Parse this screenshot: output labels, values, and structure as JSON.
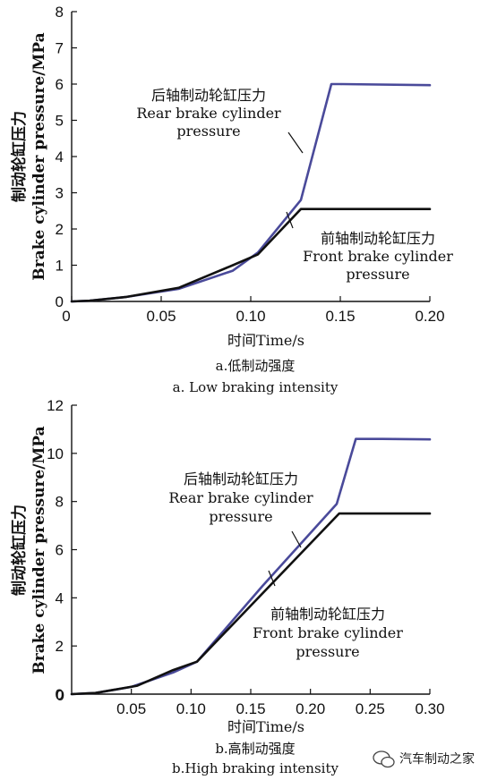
{
  "chart_data": [
    {
      "type": "line",
      "title": "",
      "xlabel": "时间Time/s",
      "ylabel_line1": "制动轮缸压力",
      "ylabel_line2": "Brake cylinder pressure/MPa",
      "xlim": [
        0,
        0.2
      ],
      "ylim": [
        0,
        8
      ],
      "xticks": [
        0,
        0.05,
        0.1,
        0.15,
        0.2
      ],
      "xtick_labels": [
        "0",
        "0.05",
        "0.10",
        "0.15",
        "0.20"
      ],
      "yticks": [
        0,
        1,
        2,
        3,
        4,
        5,
        6,
        7,
        8
      ],
      "ytick_labels": [
        "0",
        "1",
        "2",
        "3",
        "4",
        "5",
        "6",
        "7",
        "8"
      ],
      "caption_cn": "a.低制动强度",
      "caption_en": "a. Low braking intensity",
      "grid": false,
      "series": [
        {
          "name": "后轴制动轮缸压力 Rear brake cylinder pressure",
          "color": "#4a4a9a",
          "x": [
            0,
            0.01,
            0.03,
            0.06,
            0.09,
            0.104,
            0.128,
            0.145,
            0.15,
            0.2
          ],
          "y": [
            0,
            0.02,
            0.12,
            0.35,
            0.85,
            1.35,
            2.8,
            6.0,
            6.0,
            5.97
          ]
        },
        {
          "name": "前轴制动轮缸压力 Front brake cylinder pressure",
          "color": "#111111",
          "x": [
            0,
            0.01,
            0.03,
            0.06,
            0.09,
            0.104,
            0.128,
            0.2
          ],
          "y": [
            0,
            0.02,
            0.12,
            0.38,
            1.0,
            1.3,
            2.55,
            2.55
          ]
        }
      ],
      "annotations": [
        {
          "lines": [
            "后轴制动轮缸压力",
            "Rear brake cylinder",
            "pressure"
          ]
        },
        {
          "lines": [
            "前轴制动轮缸压力",
            "Front brake cylinder",
            "pressure"
          ]
        }
      ]
    },
    {
      "type": "line",
      "title": "",
      "xlabel": "时间Time/s",
      "ylabel_line1": "制动轮缸压力",
      "ylabel_line2": "Brake cylinder pressure/MPa",
      "xlim": [
        0,
        0.3
      ],
      "ylim": [
        0,
        12
      ],
      "xticks": [
        0.05,
        0.1,
        0.15,
        0.2,
        0.25,
        0.3
      ],
      "xtick_labels": [
        "0.05",
        "0.10",
        "0.15",
        "0.20",
        "0.25",
        "0.30"
      ],
      "yticks": [
        0,
        2,
        4,
        6,
        8,
        10,
        12
      ],
      "ytick_labels": [
        "0",
        "2",
        "4",
        "6",
        "8",
        "10",
        "12"
      ],
      "caption_cn": "b.高制动强度",
      "caption_en": "b.High braking intensity",
      "grid": false,
      "series": [
        {
          "name": "后轴制动轮缸压力 Rear brake cylinder pressure",
          "color": "#4a4a9a",
          "x": [
            0,
            0.02,
            0.05,
            0.085,
            0.105,
            0.16,
            0.222,
            0.238,
            0.26,
            0.3
          ],
          "y": [
            0,
            0.05,
            0.3,
            0.9,
            1.35,
            4.5,
            7.9,
            10.6,
            10.6,
            10.58
          ]
        },
        {
          "name": "前轴制动轮缸压力 Front brake cylinder pressure",
          "color": "#111111",
          "x": [
            0,
            0.02,
            0.055,
            0.085,
            0.105,
            0.224,
            0.3
          ],
          "y": [
            0,
            0.05,
            0.35,
            1.0,
            1.35,
            7.5,
            7.5
          ]
        }
      ],
      "annotations": [
        {
          "lines": [
            "后轴制动轮缸压力",
            "Rear brake cylinder",
            "pressure"
          ]
        },
        {
          "lines": [
            "前轴制动轮缸压力",
            "Front brake cylinder",
            "pressure"
          ]
        }
      ]
    }
  ],
  "watermark": {
    "text": "汽车制动之家",
    "icon": "wechat-icon"
  }
}
